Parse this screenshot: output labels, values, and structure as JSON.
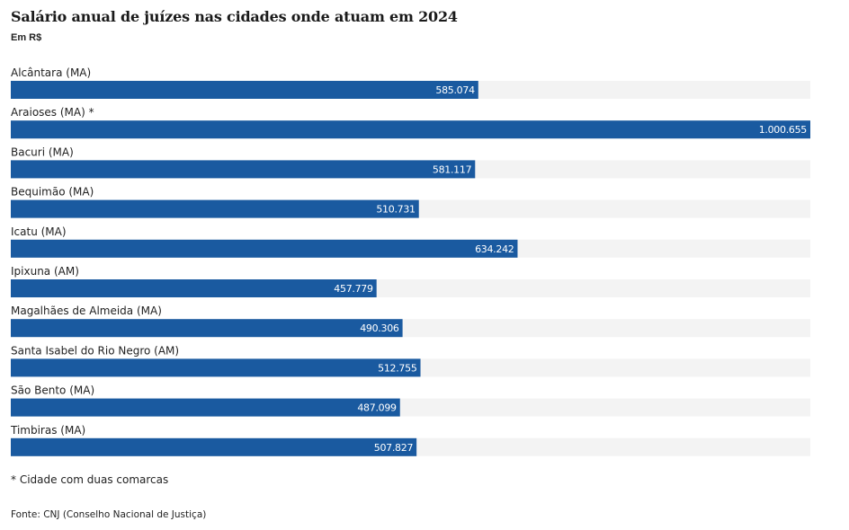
{
  "chart_data": {
    "type": "bar",
    "orientation": "horizontal",
    "title": "Salário anual de juízes nas cidades onde atuam em 2024",
    "subtitle": "Em R$",
    "categories": [
      "Alcântara (MA)",
      "Araioses (MA) *",
      "Bacuri (MA)",
      "Bequimão (MA)",
      "Icatu (MA)",
      "Ipixuna (AM)",
      "Magalhães de Almeida (MA)",
      "Santa Isabel do Rio Negro (AM)",
      "São Bento (MA)",
      "Timbiras (MA)"
    ],
    "values": [
      585074,
      1000655,
      581117,
      510731,
      634242,
      457779,
      490306,
      512755,
      487099,
      507827
    ],
    "value_labels": [
      "585.074",
      "1.000.655",
      "581.117",
      "510.731",
      "634.242",
      "457.779",
      "490.306",
      "512.755",
      "487.099",
      "507.827"
    ],
    "xlim": [
      0,
      1000655
    ],
    "grid": false,
    "legend": "none",
    "bar_color": "#1a5aa0",
    "track_color": "#f3f3f3"
  },
  "footnote": "* Cidade com duas comarcas",
  "source": "Fonte: CNJ (Conselho Nacional de Justiça)"
}
